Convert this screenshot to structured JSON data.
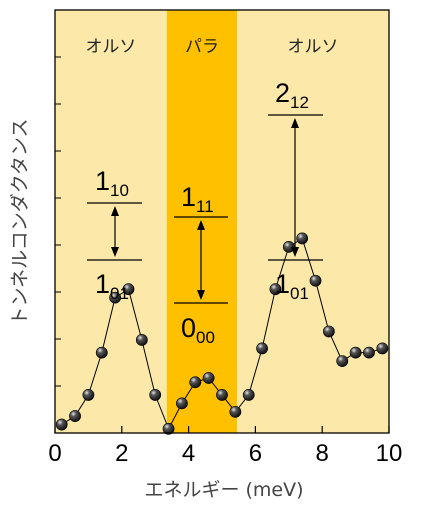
{
  "chart_data": {
    "type": "scatter",
    "xlabel": "エネルギー (meV)",
    "ylabel": "トンネルコンダクタンス",
    "xlim": [
      0,
      10
    ],
    "ylim": [
      0,
      1
    ],
    "x_ticks": [
      "0",
      "2",
      "4",
      "6",
      "8",
      "10"
    ],
    "grid": false,
    "colors": {
      "ortho_background": "#fce9a9",
      "para_background": "#ffc000",
      "markers": "#111111",
      "line": "#000000"
    },
    "regions": [
      {
        "label": "オルソ",
        "x_start": 0,
        "x_end": 3.35
      },
      {
        "label": "パラ",
        "x_start": 3.35,
        "x_end": 5.45
      },
      {
        "label": "オルソ",
        "x_start": 5.45,
        "x_end": 10
      }
    ],
    "series": [
      {
        "x": [
          0.2,
          0.6,
          1.0,
          1.4,
          1.8,
          2.2,
          2.6,
          3.0,
          3.4,
          3.8,
          4.2,
          4.6,
          5.0,
          5.4,
          5.8,
          6.2,
          6.6,
          7.0,
          7.4,
          7.8,
          8.2,
          8.6,
          9.0,
          9.4,
          9.8
        ],
        "y": [
          0.02,
          0.04,
          0.09,
          0.19,
          0.32,
          0.34,
          0.22,
          0.09,
          0.01,
          0.07,
          0.12,
          0.13,
          0.09,
          0.05,
          0.09,
          0.2,
          0.34,
          0.44,
          0.46,
          0.36,
          0.24,
          0.17,
          0.19,
          0.19,
          0.2
        ]
      }
    ],
    "transitions": [
      {
        "upper": {
          "main": "1",
          "sub": "10"
        },
        "lower": {
          "main": "1",
          "sub": "01"
        }
      },
      {
        "upper": {
          "main": "1",
          "sub": "11"
        },
        "lower": {
          "main": "0",
          "sub": "00"
        }
      },
      {
        "upper": {
          "main": "2",
          "sub": "12"
        },
        "lower": {
          "main": "1",
          "sub": "01"
        }
      }
    ]
  }
}
